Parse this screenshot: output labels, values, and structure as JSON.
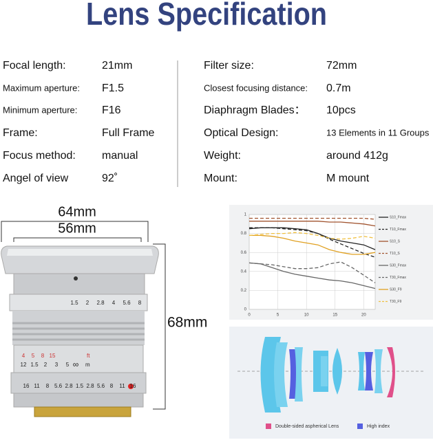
{
  "title": "Lens Specification",
  "specs_left": [
    {
      "label": "Focal length:",
      "value": "21mm"
    },
    {
      "label": "Maximum aperture:",
      "value": "F1.5"
    },
    {
      "label": "Minimum aperture:",
      "value": "F16"
    },
    {
      "label": "Frame:",
      "value": "Full Frame"
    },
    {
      "label": "Focus method:",
      "value": "manual"
    },
    {
      "label": "Angel of view",
      "value": "92˚"
    }
  ],
  "specs_right": [
    {
      "label": "Filter size:",
      "value": "72mm"
    },
    {
      "label": "Closest focusing distance:",
      "value": "0.7m"
    },
    {
      "label": "Diaphragm Blades：",
      "value": "10pcs"
    },
    {
      "label": "Optical Design:",
      "value": "13 Elements in 11 Groups"
    },
    {
      "label": "Weight:",
      "value": "around 412g"
    },
    {
      "label": "Mount:",
      "value": "M mount"
    }
  ],
  "dimensions": {
    "hood_width": "64mm",
    "barrel_width": "56mm",
    "length": "68mm"
  },
  "lens_markings": {
    "dof_scale": [
      "1.5",
      "2",
      "2.8",
      "4",
      "5.6",
      "8"
    ],
    "ft_scale": [
      "4",
      "5",
      "8",
      "15"
    ],
    "ft_unit": "ft",
    "m_scale": [
      "12",
      "1.5",
      "2",
      "3",
      "5"
    ],
    "infinity": "∞",
    "m_unit": "m",
    "aperture_scale": [
      "16",
      "11",
      "8",
      "5.6",
      "2.8",
      "1.5",
      "2.8",
      "5.6",
      "8",
      "11",
      "16"
    ]
  },
  "mtf": {
    "x": [
      0,
      2,
      4,
      6,
      8,
      10,
      12,
      14,
      16,
      18,
      20,
      22
    ],
    "xlim": [
      0,
      22
    ],
    "ylim": [
      0,
      1
    ],
    "xticks": [
      0,
      5,
      10,
      15,
      20
    ],
    "yticks": [
      0,
      0.2,
      0.4,
      0.6,
      0.8,
      1
    ],
    "series": [
      {
        "name": "S10_Fmax",
        "color": "#222222",
        "dash": false,
        "values": [
          0.85,
          0.86,
          0.86,
          0.86,
          0.85,
          0.84,
          0.8,
          0.75,
          0.72,
          0.7,
          0.68,
          0.63
        ]
      },
      {
        "name": "T10_Fmax",
        "color": "#222222",
        "dash": true,
        "values": [
          0.86,
          0.86,
          0.86,
          0.85,
          0.84,
          0.83,
          0.8,
          0.74,
          0.69,
          0.64,
          0.59,
          0.55
        ]
      },
      {
        "name": "S10_S",
        "color": "#a0522d",
        "dash": false,
        "values": [
          0.93,
          0.93,
          0.93,
          0.93,
          0.93,
          0.93,
          0.93,
          0.92,
          0.92,
          0.91,
          0.9,
          0.88
        ]
      },
      {
        "name": "T10_S",
        "color": "#a0522d",
        "dash": true,
        "values": [
          0.96,
          0.96,
          0.96,
          0.96,
          0.96,
          0.96,
          0.96,
          0.96,
          0.96,
          0.96,
          0.96,
          0.95
        ]
      },
      {
        "name": "S30_Fmax",
        "color": "#666666",
        "dash": false,
        "values": [
          0.49,
          0.48,
          0.44,
          0.4,
          0.37,
          0.35,
          0.33,
          0.31,
          0.3,
          0.28,
          0.25,
          0.22
        ]
      },
      {
        "name": "T30_Fmax",
        "color": "#666666",
        "dash": true,
        "values": [
          0.49,
          0.48,
          0.47,
          0.45,
          0.43,
          0.43,
          0.44,
          0.48,
          0.5,
          0.44,
          0.36,
          0.28
        ]
      },
      {
        "name": "S30_F9",
        "color": "#e0a020",
        "dash": false,
        "values": [
          0.78,
          0.78,
          0.77,
          0.75,
          0.72,
          0.7,
          0.68,
          0.63,
          0.6,
          0.58,
          0.58,
          0.6
        ]
      },
      {
        "name": "T30_F9",
        "color": "#f0c040",
        "dash": true,
        "values": [
          0.78,
          0.79,
          0.8,
          0.8,
          0.81,
          0.8,
          0.78,
          0.75,
          0.74,
          0.75,
          0.77,
          0.75
        ]
      }
    ]
  },
  "lens_diagram": {
    "legend": [
      "Double-sided aspherical Lens",
      "High index"
    ]
  }
}
